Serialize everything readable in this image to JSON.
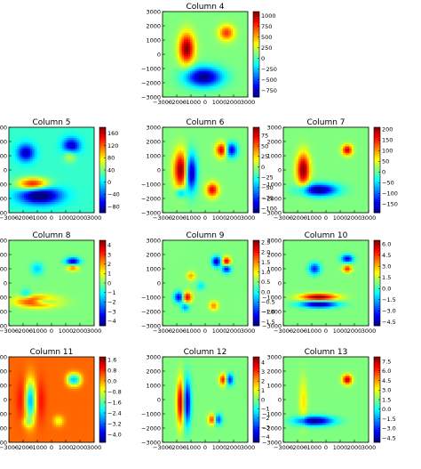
{
  "chart_data": [
    {
      "type": "heatmap",
      "title": "Column 4",
      "x_ticks": [
        "−3000",
        "−2000",
        "−1000",
        "0",
        "1000",
        "2000",
        "3000"
      ],
      "y_ticks": [
        "3000",
        "2000",
        "1000",
        "0",
        "−1000",
        "−2000",
        "−3000"
      ],
      "xlim": [
        -3000,
        3000
      ],
      "ylim": [
        -3000,
        3000
      ],
      "colorbar_ticks": [
        "1000",
        "750",
        "500",
        "250",
        "0",
        "−250",
        "−500",
        "−750"
      ],
      "clim": [
        -900,
        1100
      ],
      "blobs": [
        {
          "x": -1300,
          "y": 400,
          "sx": 380,
          "sy": 750,
          "a": 1.0
        },
        {
          "x": 1500,
          "y": 1500,
          "sx": 380,
          "sy": 380,
          "a": 0.65
        },
        {
          "x": -100,
          "y": -1600,
          "sx": 900,
          "sy": 480,
          "a": -1.0
        }
      ]
    },
    {
      "type": "heatmap",
      "title": "Column 5",
      "x_ticks": [
        "−3000",
        "−2000",
        "−1000",
        "0",
        "1000",
        "2000",
        "3000"
      ],
      "y_ticks": [
        "3000",
        "2000",
        "1000",
        "0",
        "−1000",
        "−2000",
        "−3000"
      ],
      "xlim": [
        -3000,
        3000
      ],
      "ylim": [
        -3000,
        3000
      ],
      "colorbar_ticks": [
        "160",
        "120",
        "80",
        "40",
        "0",
        "−40",
        "−80"
      ],
      "clim": [
        -100,
        180
      ],
      "bg": -0.15,
      "blobs": [
        {
          "x": -1800,
          "y": 1200,
          "sx": 420,
          "sy": 420,
          "a": -0.75
        },
        {
          "x": 1400,
          "y": 1700,
          "sx": 420,
          "sy": 380,
          "a": -0.75
        },
        {
          "x": -1300,
          "y": -1000,
          "sx": 750,
          "sy": 300,
          "a": 0.95
        },
        {
          "x": -800,
          "y": -1800,
          "sx": 1000,
          "sy": 420,
          "a": -1.0
        },
        {
          "x": 1300,
          "y": 1000,
          "sx": 300,
          "sy": 300,
          "a": 0.35
        }
      ]
    },
    {
      "type": "heatmap",
      "title": "Column 6",
      "x_ticks": [
        "−3000",
        "−2000",
        "−1000",
        "0",
        "1000",
        "2000",
        "3000"
      ],
      "y_ticks": [
        "3000",
        "2000",
        "1000",
        "0",
        "−1000",
        "−2000",
        "−3000"
      ],
      "xlim": [
        -3000,
        3000
      ],
      "ylim": [
        -3000,
        3000
      ],
      "colorbar_ticks": [
        "75",
        "50",
        "25",
        "0",
        "−25",
        "−50",
        "−75",
        "−100"
      ],
      "clim": [
        -110,
        95
      ],
      "blobs": [
        {
          "x": -1700,
          "y": 0,
          "sx": 350,
          "sy": 900,
          "a": 1.0
        },
        {
          "x": -1000,
          "y": -200,
          "sx": 280,
          "sy": 900,
          "a": -1.0
        },
        {
          "x": 1200,
          "y": 1400,
          "sx": 300,
          "sy": 350,
          "a": 0.9
        },
        {
          "x": 1800,
          "y": 1400,
          "sx": 300,
          "sy": 350,
          "a": -0.9
        },
        {
          "x": 500,
          "y": -1400,
          "sx": 300,
          "sy": 350,
          "a": 0.8
        },
        {
          "x": -1700,
          "y": -1600,
          "sx": 250,
          "sy": 250,
          "a": -0.5
        }
      ]
    },
    {
      "type": "heatmap",
      "title": "Column 7",
      "x_ticks": [
        "−3000",
        "−2000",
        "−1000",
        "0",
        "1000",
        "2000",
        "3000"
      ],
      "y_ticks": [
        "3000",
        "2000",
        "1000",
        "0",
        "−1000",
        "−2000",
        "−3000"
      ],
      "xlim": [
        -3000,
        3000
      ],
      "ylim": [
        -3000,
        3000
      ],
      "colorbar_ticks": [
        "200",
        "150",
        "100",
        "50",
        "0",
        "−50",
        "−100",
        "−150"
      ],
      "clim": [
        -190,
        210
      ],
      "blobs": [
        {
          "x": -1600,
          "y": 0,
          "sx": 320,
          "sy": 800,
          "a": 1.0
        },
        {
          "x": -500,
          "y": -1400,
          "sx": 900,
          "sy": 300,
          "a": -1.0
        },
        {
          "x": 1500,
          "y": 1400,
          "sx": 260,
          "sy": 260,
          "a": 0.85
        }
      ]
    },
    {
      "type": "heatmap",
      "title": "Column 8",
      "x_ticks": [
        "−3000",
        "−2000",
        "−1000",
        "0",
        "1000",
        "2000",
        "3000"
      ],
      "y_ticks": [
        "3000",
        "2000",
        "1000",
        "0",
        "−1000",
        "−2000",
        "−3000"
      ],
      "xlim": [
        -3000,
        3000
      ],
      "ylim": [
        -3000,
        3000
      ],
      "colorbar_ticks": [
        "4",
        "3",
        "2",
        "1",
        "0",
        "−1",
        "−2",
        "−3",
        "−4"
      ],
      "clim": [
        -4.5,
        4.5
      ],
      "blobs": [
        {
          "x": -1000,
          "y": -1300,
          "sx": 950,
          "sy": 260,
          "a": 1.0
        },
        {
          "x": -600,
          "y": -1300,
          "sx": 600,
          "sy": 150,
          "a": -0.8
        },
        {
          "x": 1500,
          "y": 1500,
          "sx": 350,
          "sy": 200,
          "a": -0.9
        },
        {
          "x": 1500,
          "y": 1100,
          "sx": 280,
          "sy": 170,
          "a": 0.6
        },
        {
          "x": -1000,
          "y": 1000,
          "sx": 300,
          "sy": 300,
          "a": -0.35
        },
        {
          "x": -1800,
          "y": -800,
          "sx": 250,
          "sy": 250,
          "a": -0.3
        }
      ]
    },
    {
      "type": "heatmap",
      "title": "Column 9",
      "x_ticks": [
        "−3000",
        "−2000",
        "−1000",
        "0",
        "1000",
        "2000",
        "3000"
      ],
      "y_ticks": [
        "3000",
        "2000",
        "1000",
        "0",
        "−1000",
        "−2000",
        "−3000"
      ],
      "xlim": [
        -3000,
        3000
      ],
      "ylim": [
        -3000,
        3000
      ],
      "colorbar_ticks": [
        "2.5",
        "2.0",
        "1.5",
        "1.0",
        "0.5",
        "0.0",
        "−0.5",
        "−1.0",
        "−1.5"
      ],
      "clim": [
        -1.7,
        2.6
      ],
      "blobs": [
        {
          "x": -1800,
          "y": -1000,
          "sx": 250,
          "sy": 260,
          "a": -0.9
        },
        {
          "x": -1300,
          "y": -1000,
          "sx": 250,
          "sy": 260,
          "a": 0.9
        },
        {
          "x": -1400,
          "y": -1700,
          "sx": 200,
          "sy": 200,
          "a": -0.5
        },
        {
          "x": 800,
          "y": 1500,
          "sx": 220,
          "sy": 250,
          "a": -0.9
        },
        {
          "x": 1500,
          "y": 1500,
          "sx": 200,
          "sy": 220,
          "a": 0.9
        },
        {
          "x": 1500,
          "y": 1000,
          "sx": 220,
          "sy": 220,
          "a": -0.8
        },
        {
          "x": -1000,
          "y": 500,
          "sx": 200,
          "sy": 200,
          "a": 0.45
        },
        {
          "x": 600,
          "y": -1600,
          "sx": 220,
          "sy": 220,
          "a": 0.5
        },
        {
          "x": -300,
          "y": -200,
          "sx": 200,
          "sy": 200,
          "a": -0.3
        }
      ]
    },
    {
      "type": "heatmap",
      "title": "Column 10",
      "x_ticks": [
        "−3000",
        "−2000",
        "−1000",
        "0",
        "1000",
        "2000",
        "3000"
      ],
      "y_ticks": [
        "3000",
        "2000",
        "1000",
        "0",
        "−1000",
        "−2000",
        "−3000"
      ],
      "xlim": [
        -3000,
        3000
      ],
      "ylim": [
        -3000,
        3000
      ],
      "colorbar_ticks": [
        "6.0",
        "4.5",
        "3.0",
        "1.5",
        "0.0",
        "−1.5",
        "−3.0",
        "−4.5"
      ],
      "clim": [
        -5,
        6.5
      ],
      "blobs": [
        {
          "x": -500,
          "y": -1000,
          "sx": 900,
          "sy": 170,
          "a": 1.0
        },
        {
          "x": -500,
          "y": -1500,
          "sx": 900,
          "sy": 170,
          "a": -1.0
        },
        {
          "x": -800,
          "y": 1000,
          "sx": 280,
          "sy": 280,
          "a": -0.7
        },
        {
          "x": 1500,
          "y": 1700,
          "sx": 300,
          "sy": 200,
          "a": -0.8
        },
        {
          "x": 1500,
          "y": 1000,
          "sx": 220,
          "sy": 180,
          "a": 0.7
        }
      ]
    },
    {
      "type": "heatmap",
      "title": "Column 11",
      "x_ticks": [
        "−3000",
        "−2000",
        "−1000",
        "0",
        "1000",
        "2000",
        "3000"
      ],
      "y_ticks": [
        "3000",
        "2000",
        "1000",
        "0",
        "−1000",
        "−2000",
        "−3000"
      ],
      "xlim": [
        -3000,
        3000
      ],
      "ylim": [
        -3000,
        3000
      ],
      "colorbar_ticks": [
        "1.6",
        "0.8",
        "0.0",
        "−0.8",
        "−1.6",
        "−2.4",
        "−3.2",
        "−4.0"
      ],
      "clim": [
        -4.6,
        1.8
      ],
      "bg": 0.55,
      "blobs": [
        {
          "x": -1500,
          "y": -100,
          "sx": 280,
          "sy": 1000,
          "a": -1.0
        },
        {
          "x": -2000,
          "y": 0,
          "sx": 300,
          "sy": 1000,
          "a": 0.25
        },
        {
          "x": -800,
          "y": -100,
          "sx": 260,
          "sy": 1000,
          "a": 0.2
        },
        {
          "x": 1400,
          "y": 1400,
          "sx": 240,
          "sy": 300,
          "a": -0.7
        },
        {
          "x": 1800,
          "y": 1400,
          "sx": 240,
          "sy": 300,
          "a": -0.6
        },
        {
          "x": 500,
          "y": -1500,
          "sx": 250,
          "sy": 260,
          "a": -0.35
        },
        {
          "x": -1700,
          "y": -1600,
          "sx": 250,
          "sy": 250,
          "a": -0.3
        }
      ]
    },
    {
      "type": "heatmap",
      "title": "Column 12",
      "x_ticks": [
        "−3000",
        "−2000",
        "−1000",
        "0",
        "1000",
        "2000",
        "3000"
      ],
      "y_ticks": [
        "3000",
        "2000",
        "1000",
        "0",
        "−1000",
        "−2000",
        "−3000"
      ],
      "xlim": [
        -3000,
        3000
      ],
      "ylim": [
        -3000,
        3000
      ],
      "colorbar_ticks": [
        "4",
        "3",
        "2",
        "1",
        "0",
        "−1",
        "−2",
        "−3",
        "−4"
      ],
      "clim": [
        -4.6,
        4.6
      ],
      "blobs": [
        {
          "x": -1700,
          "y": -200,
          "sx": 200,
          "sy": 1100,
          "a": 1.0
        },
        {
          "x": -1300,
          "y": -200,
          "sx": 200,
          "sy": 1100,
          "a": -1.0
        },
        {
          "x": 1300,
          "y": 1400,
          "sx": 200,
          "sy": 280,
          "a": 0.8
        },
        {
          "x": 1700,
          "y": 1400,
          "sx": 200,
          "sy": 280,
          "a": -0.8
        },
        {
          "x": 500,
          "y": -1400,
          "sx": 200,
          "sy": 260,
          "a": 0.7
        },
        {
          "x": 900,
          "y": -1400,
          "sx": 200,
          "sy": 260,
          "a": -0.7
        }
      ]
    },
    {
      "type": "heatmap",
      "title": "Column 13",
      "x_ticks": [
        "−3000",
        "−2000",
        "−1000",
        "0",
        "1000",
        "2000",
        "3000"
      ],
      "y_ticks": [
        "3000",
        "2000",
        "1000",
        "0",
        "−1000",
        "−2000",
        "−3000"
      ],
      "xlim": [
        -3000,
        3000
      ],
      "ylim": [
        -3000,
        3000
      ],
      "colorbar_ticks": [
        "7.5",
        "6.0",
        "4.5",
        "3.0",
        "1.5",
        "0.0",
        "−1.5",
        "−3.0",
        "−4.5"
      ],
      "clim": [
        -5.2,
        8.2
      ],
      "blobs": [
        {
          "x": -1600,
          "y": -100,
          "sx": 200,
          "sy": 1100,
          "a": 0.3
        },
        {
          "x": -800,
          "y": -1500,
          "sx": 900,
          "sy": 230,
          "a": -1.0
        },
        {
          "x": 1500,
          "y": 1400,
          "sx": 240,
          "sy": 240,
          "a": 0.9
        }
      ]
    }
  ]
}
